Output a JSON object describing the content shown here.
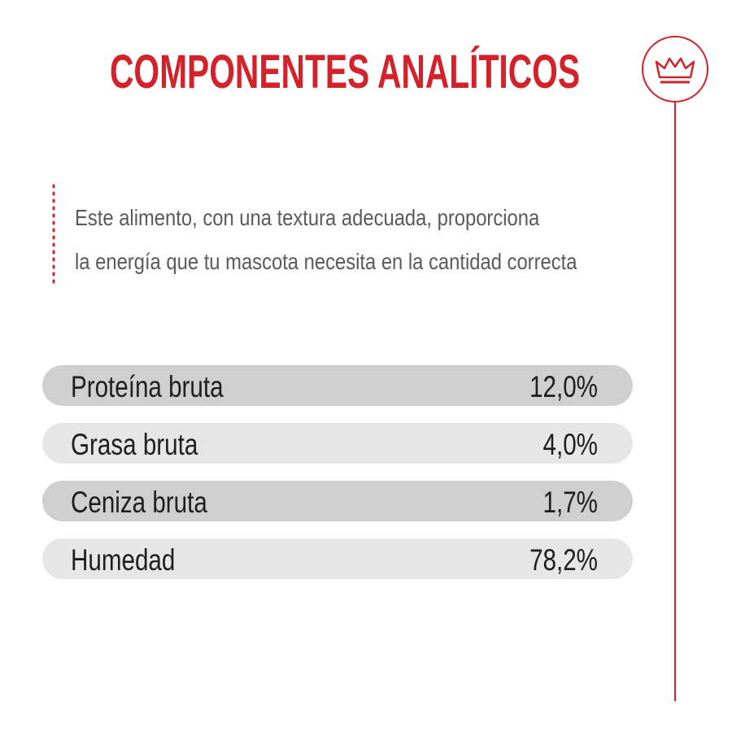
{
  "title": "COMPONENTES ANALÍTICOS",
  "description": [
    "Este alimento, con una textura adecuada, proporciona",
    "la energía que tu mascota necesita en la cantidad correcta"
  ],
  "table": {
    "rows": [
      [
        "Proteína bruta",
        "12,0%"
      ],
      [
        "Grasa bruta",
        "4,0%"
      ],
      [
        "Ceniza bruta",
        "1,7%"
      ],
      [
        "Humedad",
        "78,2%"
      ]
    ]
  }
}
